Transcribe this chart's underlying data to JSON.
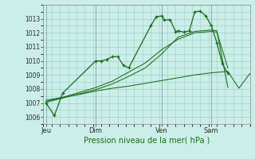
{
  "background_color": "#cceee8",
  "grid_color": "#99cccc",
  "line_color": "#1a6b1a",
  "xlabel_text": "Pression niveau de la mer( hPa )",
  "ylim": [
    1005.5,
    1013.75
  ],
  "yticks": [
    1006,
    1007,
    1008,
    1009,
    1010,
    1011,
    1012,
    1013
  ],
  "day_labels": [
    "Jeu",
    "Dim",
    "Ven",
    "Sam"
  ],
  "day_positions": [
    0,
    18,
    42,
    60
  ],
  "xlim": [
    -1,
    74
  ],
  "series1_x": [
    0,
    3,
    6,
    18,
    20,
    22,
    24,
    26,
    28,
    30,
    38,
    40,
    42,
    43,
    45,
    47,
    48,
    50,
    52,
    54,
    56,
    58,
    60,
    62,
    64,
    66
  ],
  "series1_y": [
    1007.0,
    1006.1,
    1007.7,
    1010.0,
    1010.0,
    1010.1,
    1010.3,
    1010.3,
    1009.7,
    1009.5,
    1012.5,
    1013.15,
    1013.2,
    1012.9,
    1012.95,
    1012.1,
    1012.15,
    1012.05,
    1012.15,
    1013.5,
    1013.55,
    1013.2,
    1012.5,
    1011.3,
    1009.8,
    1009.1
  ],
  "series2_x": [
    0,
    6,
    12,
    18,
    24,
    30,
    36,
    42,
    48,
    54,
    60,
    66,
    70,
    74
  ],
  "series2_y": [
    1007.2,
    1007.4,
    1007.6,
    1007.85,
    1008.05,
    1008.2,
    1008.4,
    1008.6,
    1008.8,
    1009.0,
    1009.15,
    1009.25,
    1008.05,
    1009.1
  ],
  "series3_x": [
    0,
    6,
    12,
    18,
    24,
    30,
    36,
    42,
    48,
    54,
    60,
    62,
    66
  ],
  "series3_y": [
    1007.05,
    1007.35,
    1007.65,
    1007.95,
    1008.35,
    1008.9,
    1009.5,
    1010.5,
    1011.7,
    1012.1,
    1012.2,
    1012.15,
    1008.1
  ],
  "series4_x": [
    0,
    6,
    12,
    18,
    24,
    30,
    36,
    42,
    48,
    54,
    60,
    62,
    66
  ],
  "series4_y": [
    1007.1,
    1007.4,
    1007.75,
    1008.1,
    1008.55,
    1009.2,
    1009.85,
    1010.8,
    1011.55,
    1012.0,
    1012.1,
    1012.05,
    1009.5
  ]
}
